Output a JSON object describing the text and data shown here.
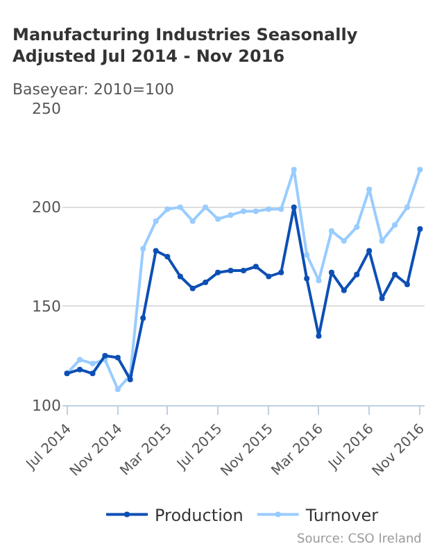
{
  "chart_data": {
    "type": "line",
    "title": "Manufacturing Industries Seasonally Adjusted Jul 2014 - Nov 2016",
    "subtitle": "Baseyear: 2010=100",
    "x": [
      "2014-07",
      "2014-08",
      "2014-09",
      "2014-10",
      "2014-11",
      "2014-12",
      "2015-01",
      "2015-02",
      "2015-03",
      "2015-04",
      "2015-05",
      "2015-06",
      "2015-07",
      "2015-08",
      "2015-09",
      "2015-10",
      "2015-11",
      "2015-12",
      "2016-01",
      "2016-02",
      "2016-03",
      "2016-04",
      "2016-05",
      "2016-06",
      "2016-07",
      "2016-08",
      "2016-09",
      "2016-10",
      "2016-11"
    ],
    "series": [
      {
        "name": "Production",
        "color": "#0d4fb5",
        "values": [
          116,
          118,
          116,
          125,
          124,
          113,
          144,
          178,
          175,
          165,
          159,
          162,
          167,
          168,
          168,
          170,
          165,
          167,
          200,
          164,
          135,
          167,
          158,
          166,
          178,
          154,
          166,
          161,
          189
        ]
      },
      {
        "name": "Turnover",
        "color": "#99ccff",
        "values": [
          116,
          123,
          121,
          123,
          108,
          115,
          179,
          193,
          199,
          200,
          193,
          200,
          194,
          196,
          198,
          198,
          199,
          199,
          219,
          176,
          163,
          188,
          183,
          190,
          209,
          183,
          191,
          200,
          219
        ]
      }
    ],
    "xlim": [
      "2014-06-20",
      "2016-11-12"
    ],
    "xticks": [
      {
        "value": "2014-07",
        "label": "Jul 2014"
      },
      {
        "value": "2014-11",
        "label": "Nov 2014"
      },
      {
        "value": "2015-03",
        "label": "Mar 2015"
      },
      {
        "value": "2015-07",
        "label": "Jul 2015"
      },
      {
        "value": "2015-11",
        "label": "Nov 2015"
      },
      {
        "value": "2016-03",
        "label": "Mar 2016"
      },
      {
        "value": "2016-07",
        "label": "Jul 2016"
      },
      {
        "value": "2016-11",
        "label": "Nov 2016"
      }
    ],
    "ylim": [
      100,
      250
    ],
    "yticks": [
      100,
      150,
      200,
      250
    ],
    "grid": "y",
    "legend": "bottom",
    "marker": "circle",
    "line_style": "solid",
    "annotations": [
      "Source: CSO Ireland"
    ]
  }
}
